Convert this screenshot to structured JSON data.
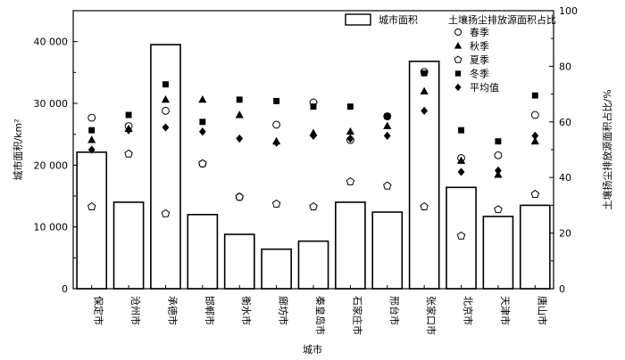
{
  "chart_data": {
    "type": "bar",
    "categories": [
      "保定市",
      "沧州市",
      "承德市",
      "邯郸市",
      "衡水市",
      "廊坊市",
      "秦皇岛市",
      "石家庄市",
      "邢台市",
      "张家口市",
      "北京市",
      "天津市",
      "唐山市"
    ],
    "bar_series": {
      "name": "城市面积",
      "values": [
        22100,
        14000,
        39500,
        12000,
        8800,
        6400,
        7700,
        14000,
        12400,
        36800,
        16400,
        11700,
        13500
      ]
    },
    "marker_series": [
      {
        "name": "春季",
        "marker": "circle-open",
        "values": [
          61.5,
          58.5,
          64,
          45,
          33,
          59,
          67,
          53.5,
          62,
          78,
          47,
          48,
          62.5
        ]
      },
      {
        "name": "秋季",
        "marker": "triangle",
        "values": [
          53.5,
          57.5,
          68,
          68,
          62.5,
          53,
          56,
          56.5,
          58.5,
          71,
          46,
          41,
          53
        ]
      },
      {
        "name": "夏季",
        "marker": "pentagon-open",
        "values": [
          29.5,
          48.5,
          27,
          45,
          33,
          30.5,
          29.5,
          38.5,
          37,
          29.5,
          19,
          28.5,
          34
        ]
      },
      {
        "name": "冬季",
        "marker": "square",
        "values": [
          57,
          62.5,
          73.5,
          60,
          68,
          67.5,
          65.5,
          65.5,
          62,
          77.5,
          57,
          53,
          69.5
        ]
      },
      {
        "name": "平均值",
        "marker": "diamond",
        "values": [
          50,
          57,
          58,
          56.5,
          54,
          52.5,
          55,
          54,
          55,
          64,
          42,
          42.5,
          55
        ]
      }
    ],
    "title": "",
    "xlabel": "城市",
    "ylabel_left": "城市面积/km²",
    "ylabel_right": "土壤扬尘排放源面积占比/%",
    "ylim_left": [
      0,
      45000
    ],
    "ylim_right": [
      0,
      100
    ],
    "yticks_left": [
      "0",
      "10 000",
      "20 000",
      "30 000",
      "40 000"
    ],
    "yticks_right": [
      "0",
      "20",
      "40",
      "60",
      "80",
      "100"
    ],
    "legend_bar_label": "城市面积",
    "legend_marker_title": "土壤扬尘排放源面积占比",
    "grid": false,
    "legend_position": "top-right"
  }
}
